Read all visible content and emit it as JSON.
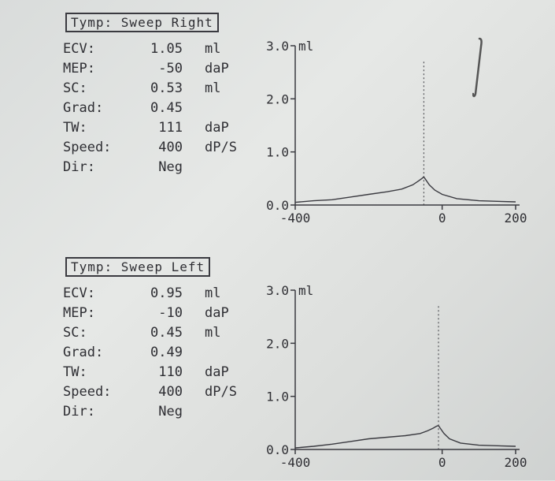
{
  "panels": [
    {
      "title": "Tymp: Sweep Right",
      "params": [
        {
          "label": "ECV:",
          "value": "1.05",
          "unit": "ml"
        },
        {
          "label": "MEP:",
          "value": "-50",
          "unit": "daP"
        },
        {
          "label": "SC:",
          "value": "0.53",
          "unit": "ml"
        },
        {
          "label": "Grad:",
          "value": "0.45",
          "unit": ""
        },
        {
          "label": "TW:",
          "value": "111",
          "unit": "daP"
        },
        {
          "label": "Speed:",
          "value": "400",
          "unit": "dP/S"
        },
        {
          "label": "Dir:",
          "value": "Neg",
          "unit": ""
        }
      ]
    },
    {
      "title": "Tymp: Sweep Left",
      "params": [
        {
          "label": "ECV:",
          "value": "0.95",
          "unit": "ml"
        },
        {
          "label": "MEP:",
          "value": "-10",
          "unit": "daP"
        },
        {
          "label": "SC:",
          "value": "0.45",
          "unit": "ml"
        },
        {
          "label": "Grad:",
          "value": "0.49",
          "unit": ""
        },
        {
          "label": "TW:",
          "value": "110",
          "unit": "daP"
        },
        {
          "label": "Speed:",
          "value": "400",
          "unit": "dP/S"
        },
        {
          "label": "Dir:",
          "value": "Neg",
          "unit": ""
        }
      ]
    }
  ],
  "chart_data": [
    {
      "type": "line",
      "title": "",
      "xlabel": "",
      "ylabel": "ml",
      "xlim": [
        -400,
        200
      ],
      "ylim": [
        0,
        3
      ],
      "x_ticks": [
        "-400",
        "0",
        "200"
      ],
      "y_ticks": [
        "0.0",
        "1.0",
        "2.0",
        "3.0"
      ],
      "peak_x": -50,
      "series": [
        {
          "x": [
            -400,
            -350,
            -300,
            -250,
            -200,
            -150,
            -110,
            -80,
            -65,
            -55,
            -50,
            -45,
            -35,
            -20,
            0,
            40,
            100,
            150,
            200
          ],
          "values": [
            0.05,
            0.08,
            0.1,
            0.15,
            0.2,
            0.25,
            0.3,
            0.38,
            0.45,
            0.5,
            0.53,
            0.48,
            0.38,
            0.28,
            0.2,
            0.12,
            0.08,
            0.07,
            0.06
          ]
        }
      ]
    },
    {
      "type": "line",
      "title": "",
      "xlabel": "",
      "ylabel": "ml",
      "xlim": [
        -400,
        200
      ],
      "ylim": [
        0,
        3
      ],
      "x_ticks": [
        "-400",
        "0",
        "200"
      ],
      "y_ticks": [
        "0.0",
        "1.0",
        "2.0",
        "3.0"
      ],
      "peak_x": -10,
      "series": [
        {
          "x": [
            -400,
            -350,
            -300,
            -250,
            -200,
            -150,
            -100,
            -60,
            -40,
            -25,
            -15,
            -10,
            -5,
            5,
            20,
            50,
            100,
            150,
            200
          ],
          "values": [
            0.03,
            0.06,
            0.1,
            0.15,
            0.2,
            0.23,
            0.26,
            0.3,
            0.35,
            0.4,
            0.44,
            0.45,
            0.4,
            0.3,
            0.2,
            0.12,
            0.08,
            0.07,
            0.06
          ]
        }
      ]
    }
  ]
}
